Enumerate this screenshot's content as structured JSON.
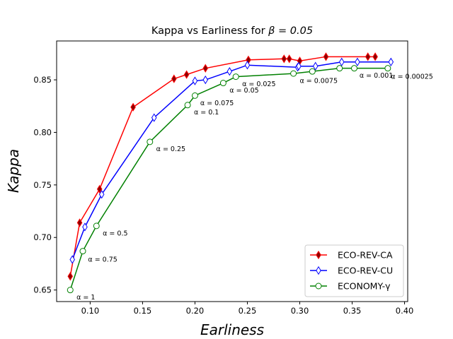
{
  "chart_data": {
    "type": "line",
    "title": "Kappa vs Earliness for β = 0.05",
    "title_prefix": "Kappa vs Earliness for ",
    "title_symbol": "β = 0.05",
    "xlabel": "Earliness",
    "ylabel": "Kappa",
    "xlim": [
      0.068,
      0.403
    ],
    "ylim": [
      0.639,
      0.887
    ],
    "xticks": [
      0.1,
      0.15,
      0.2,
      0.25,
      0.3,
      0.35,
      0.4
    ],
    "xtick_labels": [
      "0.10",
      "0.15",
      "0.20",
      "0.25",
      "0.30",
      "0.35",
      "0.40"
    ],
    "yticks": [
      0.65,
      0.7,
      0.75,
      0.8,
      0.85
    ],
    "ytick_labels": [
      "0.65",
      "0.70",
      "0.75",
      "0.80",
      "0.85"
    ],
    "grid": false,
    "legend_position": "lower-right",
    "series": [
      {
        "name": "ECO-REV-CA",
        "color": "#ff0000",
        "marker": "thin_diamond",
        "marker_face": "#8b0000",
        "x": [
          0.081,
          0.09,
          0.109,
          0.141,
          0.18,
          0.192,
          0.21,
          0.251,
          0.285,
          0.29,
          0.3,
          0.325,
          0.365,
          0.372
        ],
        "y": [
          0.663,
          0.714,
          0.746,
          0.824,
          0.851,
          0.855,
          0.861,
          0.869,
          0.87,
          0.87,
          0.868,
          0.872,
          0.872,
          0.872
        ]
      },
      {
        "name": "ECO-REV-CU",
        "color": "#0000ff",
        "marker": "thin_diamond",
        "marker_face": "#ffffff",
        "x": [
          0.083,
          0.095,
          0.111,
          0.161,
          0.2,
          0.21,
          0.233,
          0.25,
          0.298,
          0.299,
          0.315,
          0.34,
          0.355,
          0.387
        ],
        "y": [
          0.679,
          0.71,
          0.741,
          0.814,
          0.849,
          0.85,
          0.858,
          0.864,
          0.862,
          0.863,
          0.863,
          0.867,
          0.867,
          0.867
        ]
      },
      {
        "name": "ECONOMY-γ",
        "color": "#008000",
        "marker": "circle",
        "marker_face": "#ffffff",
        "x": [
          0.081,
          0.093,
          0.106,
          0.157,
          0.193,
          0.2,
          0.227,
          0.239,
          0.294,
          0.312,
          0.338,
          0.352,
          0.384
        ],
        "y": [
          0.65,
          0.687,
          0.711,
          0.791,
          0.826,
          0.835,
          0.847,
          0.853,
          0.856,
          0.858,
          0.861,
          0.861,
          0.861
        ]
      }
    ],
    "annotations": [
      {
        "text": "α = 1",
        "x": 0.087,
        "y": 0.641
      },
      {
        "text": "α = 0.75",
        "x": 0.098,
        "y": 0.677
      },
      {
        "text": "α = 0.5",
        "x": 0.112,
        "y": 0.702
      },
      {
        "text": "α = 0.25",
        "x": 0.163,
        "y": 0.782
      },
      {
        "text": "α = 0.1",
        "x": 0.199,
        "y": 0.817
      },
      {
        "text": "α = 0.075",
        "x": 0.205,
        "y": 0.826
      },
      {
        "text": "α = 0.05",
        "x": 0.233,
        "y": 0.838
      },
      {
        "text": "α = 0.025",
        "x": 0.245,
        "y": 0.844
      },
      {
        "text": "α = 0.0075",
        "x": 0.3,
        "y": 0.847
      },
      {
        "text": "α = 0.001",
        "x": 0.357,
        "y": 0.852
      },
      {
        "text": "α = 0.00025",
        "x": 0.387,
        "y": 0.851
      }
    ]
  }
}
